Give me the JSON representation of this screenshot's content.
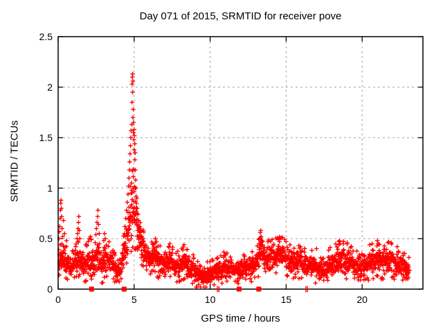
{
  "page": {
    "background": "#ffffff"
  },
  "chart_data": {
    "type": "scatter",
    "title": "Day 071 of 2015, SRMTID for receiver pove",
    "xlabel": "GPS time / hours",
    "ylabel": "SRMTID / TECUs",
    "xlim": [
      0,
      24
    ],
    "ylim": [
      0,
      2.5
    ],
    "xtick_values": [
      0,
      5,
      10,
      15,
      20
    ],
    "xtick_labels": [
      "0",
      "5",
      "10",
      "15",
      "20"
    ],
    "ytick_values": [
      0,
      0.5,
      1,
      1.5,
      2,
      2.5
    ],
    "ytick_labels": [
      "0",
      "0.5",
      "1",
      "1.5",
      "2",
      "2.5"
    ],
    "grid": {
      "x_values": [
        5,
        10,
        15,
        20
      ],
      "y_values": [
        0.5,
        1,
        1.5,
        2
      ],
      "color": "#a0a0a0",
      "dash": "3,4"
    },
    "marker": {
      "shape": "plus",
      "color": "#ff0000",
      "size": 7
    },
    "frame_color": "#000000",
    "text_color": "#000000",
    "points_per_hour": 95,
    "band_profile": [
      [
        0.0,
        0.18,
        0.42
      ],
      [
        0.3,
        0.15,
        0.45
      ],
      [
        0.6,
        0.12,
        0.38
      ],
      [
        0.9,
        0.1,
        0.32
      ],
      [
        1.2,
        0.15,
        0.45
      ],
      [
        1.45,
        0.15,
        0.42
      ],
      [
        1.7,
        0.1,
        0.36
      ],
      [
        2.0,
        0.14,
        0.45
      ],
      [
        2.3,
        0.12,
        0.4
      ],
      [
        2.6,
        0.15,
        0.48
      ],
      [
        2.9,
        0.1,
        0.36
      ],
      [
        3.1,
        0.14,
        0.4
      ],
      [
        3.35,
        0.16,
        0.44
      ],
      [
        3.6,
        0.12,
        0.38
      ],
      [
        3.85,
        0.05,
        0.24
      ],
      [
        4.1,
        0.1,
        0.3
      ],
      [
        4.3,
        0.18,
        0.5
      ],
      [
        4.55,
        0.28,
        0.7
      ],
      [
        4.75,
        0.4,
        1.0
      ],
      [
        4.95,
        0.45,
        1.2
      ],
      [
        5.1,
        0.4,
        0.95
      ],
      [
        5.3,
        0.32,
        0.7
      ],
      [
        5.55,
        0.28,
        0.55
      ],
      [
        5.8,
        0.22,
        0.48
      ],
      [
        6.1,
        0.18,
        0.42
      ],
      [
        6.45,
        0.18,
        0.46
      ],
      [
        6.8,
        0.12,
        0.35
      ],
      [
        7.1,
        0.14,
        0.38
      ],
      [
        7.4,
        0.15,
        0.42
      ],
      [
        7.7,
        0.1,
        0.33
      ],
      [
        8.0,
        0.12,
        0.36
      ],
      [
        8.3,
        0.14,
        0.4
      ],
      [
        8.6,
        0.1,
        0.33
      ],
      [
        8.9,
        0.08,
        0.3
      ],
      [
        9.2,
        0.05,
        0.24
      ],
      [
        9.6,
        0.04,
        0.2
      ],
      [
        10.0,
        0.06,
        0.24
      ],
      [
        10.4,
        0.08,
        0.28
      ],
      [
        10.8,
        0.1,
        0.32
      ],
      [
        11.2,
        0.1,
        0.32
      ],
      [
        11.6,
        0.08,
        0.28
      ],
      [
        12.0,
        0.1,
        0.3
      ],
      [
        12.4,
        0.1,
        0.32
      ],
      [
        12.8,
        0.12,
        0.34
      ],
      [
        13.1,
        0.15,
        0.4
      ],
      [
        13.35,
        0.22,
        0.52
      ],
      [
        13.6,
        0.18,
        0.46
      ],
      [
        13.9,
        0.16,
        0.44
      ],
      [
        14.2,
        0.18,
        0.45
      ],
      [
        14.55,
        0.2,
        0.48
      ],
      [
        14.9,
        0.18,
        0.45
      ],
      [
        15.2,
        0.16,
        0.42
      ],
      [
        15.6,
        0.14,
        0.4
      ],
      [
        16.0,
        0.14,
        0.38
      ],
      [
        16.4,
        0.1,
        0.33
      ],
      [
        16.8,
        0.12,
        0.35
      ],
      [
        17.2,
        0.08,
        0.3
      ],
      [
        17.5,
        0.06,
        0.28
      ],
      [
        17.8,
        0.12,
        0.35
      ],
      [
        18.2,
        0.14,
        0.4
      ],
      [
        18.6,
        0.15,
        0.44
      ],
      [
        19.0,
        0.14,
        0.42
      ],
      [
        19.4,
        0.12,
        0.37
      ],
      [
        19.8,
        0.1,
        0.33
      ],
      [
        20.2,
        0.12,
        0.36
      ],
      [
        20.6,
        0.15,
        0.42
      ],
      [
        21.0,
        0.16,
        0.45
      ],
      [
        21.4,
        0.13,
        0.4
      ],
      [
        21.8,
        0.15,
        0.43
      ],
      [
        22.2,
        0.12,
        0.38
      ],
      [
        22.6,
        0.1,
        0.33
      ],
      [
        23.1,
        0.08,
        0.28
      ]
    ],
    "outliers": [
      [
        0.05,
        0.5
      ],
      [
        0.08,
        0.57
      ],
      [
        0.1,
        0.62
      ],
      [
        0.13,
        0.7
      ],
      [
        0.15,
        0.78
      ],
      [
        0.17,
        0.85
      ],
      [
        0.19,
        0.88
      ],
      [
        0.21,
        0.8
      ],
      [
        0.23,
        0.72
      ],
      [
        0.26,
        0.6
      ],
      [
        0.3,
        0.52
      ],
      [
        0.35,
        0.68
      ],
      [
        0.42,
        0.55
      ],
      [
        0.55,
        0.48
      ],
      [
        1.25,
        0.5
      ],
      [
        1.28,
        0.55
      ],
      [
        1.31,
        0.6
      ],
      [
        1.34,
        0.66
      ],
      [
        1.36,
        0.72
      ],
      [
        1.39,
        0.58
      ],
      [
        1.42,
        0.5
      ],
      [
        2.05,
        0.5
      ],
      [
        2.12,
        0.52
      ],
      [
        2.18,
        0.49
      ],
      [
        2.2,
        0.1
      ],
      [
        2.48,
        0.54
      ],
      [
        2.52,
        0.6
      ],
      [
        2.56,
        0.66
      ],
      [
        2.6,
        0.72
      ],
      [
        2.62,
        0.78
      ],
      [
        2.66,
        0.64
      ],
      [
        2.7,
        0.55
      ],
      [
        3.0,
        0.48
      ],
      [
        3.05,
        0.55
      ],
      [
        3.1,
        0.5
      ],
      [
        4.36,
        0.55
      ],
      [
        4.4,
        0.62
      ],
      [
        4.45,
        0.7
      ],
      [
        4.5,
        0.78
      ],
      [
        4.55,
        0.86
      ],
      [
        4.6,
        0.94
      ],
      [
        4.63,
        1.02
      ],
      [
        4.66,
        1.1
      ],
      [
        4.69,
        1.18
      ],
      [
        4.71,
        1.26
      ],
      [
        4.73,
        1.34
      ],
      [
        4.76,
        1.42
      ],
      [
        4.78,
        1.5
      ],
      [
        4.8,
        1.57
      ],
      [
        4.8,
        0.95
      ],
      [
        4.82,
        1.05
      ],
      [
        4.84,
        0.98
      ],
      [
        4.85,
        1.63
      ],
      [
        4.86,
        1.85
      ],
      [
        4.87,
        2.03
      ],
      [
        4.88,
        2.1
      ],
      [
        4.9,
        2.13
      ],
      [
        4.9,
        1.95
      ],
      [
        4.92,
        2.06
      ],
      [
        4.92,
        1.7
      ],
      [
        4.94,
        1.78
      ],
      [
        4.94,
        1.0
      ],
      [
        4.95,
        1.55
      ],
      [
        4.96,
        1.65
      ],
      [
        4.98,
        1.48
      ],
      [
        5.0,
        1.58
      ],
      [
        5.0,
        1.38
      ],
      [
        5.02,
        1.52
      ],
      [
        5.04,
        1.44
      ],
      [
        5.05,
        1.28
      ],
      [
        5.07,
        1.35
      ],
      [
        5.08,
        1.18
      ],
      [
        5.1,
        1.08
      ],
      [
        5.12,
        1.0
      ],
      [
        5.13,
        0.92
      ],
      [
        5.15,
        0.85
      ],
      [
        5.18,
        0.9
      ],
      [
        5.2,
        0.8
      ],
      [
        5.25,
        0.74
      ],
      [
        5.3,
        0.68
      ],
      [
        5.36,
        0.62
      ],
      [
        5.42,
        0.57
      ],
      [
        5.5,
        0.52
      ],
      [
        5.6,
        0.47
      ],
      [
        6.4,
        0.5
      ],
      [
        6.46,
        0.47
      ],
      [
        7.35,
        0.45
      ],
      [
        8.28,
        0.44
      ],
      [
        13.22,
        0.45
      ],
      [
        13.27,
        0.5
      ],
      [
        13.3,
        0.56
      ],
      [
        13.33,
        0.58
      ],
      [
        13.36,
        0.52
      ],
      [
        13.4,
        0.48
      ],
      [
        13.45,
        0.44
      ],
      [
        14.5,
        0.5
      ],
      [
        14.56,
        0.47
      ],
      [
        15.0,
        0.47
      ],
      [
        15.95,
        0.42
      ],
      [
        17.0,
        0.4
      ],
      [
        18.48,
        0.47
      ],
      [
        18.55,
        0.45
      ],
      [
        19.02,
        0.46
      ],
      [
        20.5,
        0.44
      ],
      [
        21.0,
        0.48
      ],
      [
        21.06,
        0.45
      ],
      [
        21.9,
        0.46
      ],
      [
        22.3,
        0.42
      ]
    ],
    "zero_squares": [
      2.2,
      4.34,
      11.9,
      13.2
    ],
    "zero_bars": [
      10.48,
      10.58,
      16.3,
      16.4
    ]
  }
}
